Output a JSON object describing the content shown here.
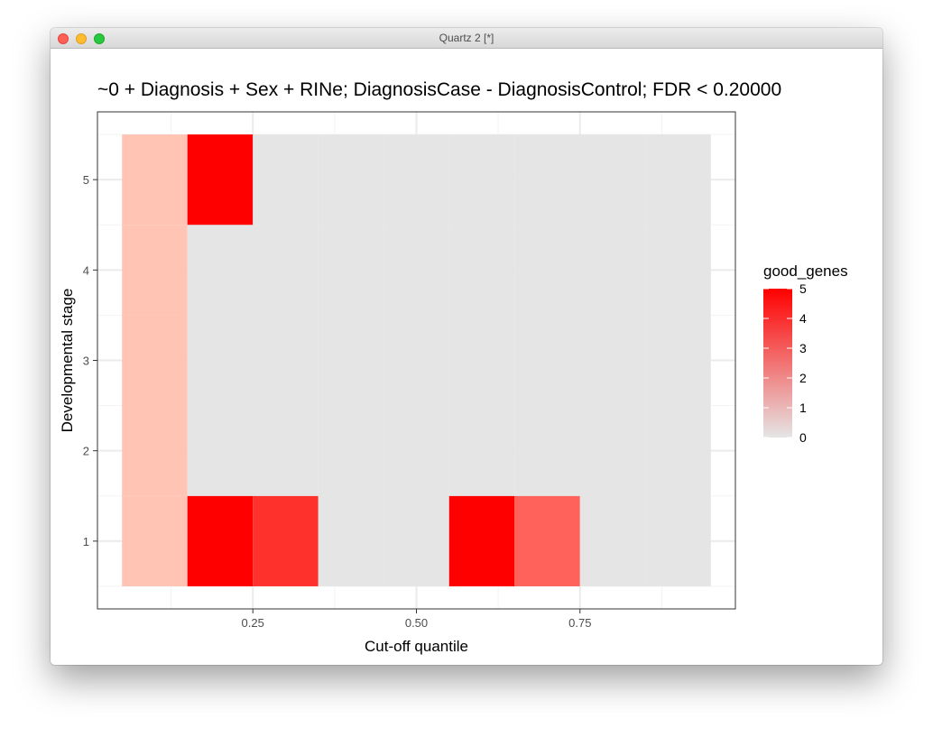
{
  "window": {
    "title": "Quartz 2 [*]"
  },
  "chart_data": {
    "type": "heatmap",
    "title": "~0 + Diagnosis + Sex + RINe; DiagnosisCase - DiagnosisControl; FDR < 0.20000",
    "xlabel": "Cut-off quantile",
    "ylabel": "Developmental stage",
    "x_ticks": [
      "0.25",
      "0.50",
      "0.75"
    ],
    "y_ticks": [
      "1",
      "2",
      "3",
      "4",
      "5"
    ],
    "x_tick_values": [
      0.25,
      0.5,
      0.75
    ],
    "y_tick_values": [
      1,
      2,
      3,
      4,
      5
    ],
    "xlim": [
      0.0125,
      0.9875
    ],
    "ylim": [
      0.25,
      5.75
    ],
    "x": [
      0.1,
      0.2,
      0.3,
      0.4,
      0.5,
      0.6,
      0.7,
      0.8,
      0.9
    ],
    "y": [
      1,
      2,
      3,
      4,
      5
    ],
    "values": [
      [
        1,
        5,
        4,
        0,
        0,
        5,
        3,
        0,
        0
      ],
      [
        1,
        0,
        0,
        0,
        0,
        0,
        0,
        0,
        0
      ],
      [
        1,
        0,
        0,
        0,
        0,
        0,
        0,
        0,
        0
      ],
      [
        1,
        0,
        0,
        0,
        0,
        0,
        0,
        0,
        0
      ],
      [
        1,
        5,
        0,
        0,
        0,
        0,
        0,
        0,
        0
      ]
    ],
    "grid": true,
    "legend": {
      "title": "good_genes",
      "position": "right",
      "ticks": [
        "0",
        "1",
        "2",
        "3",
        "4",
        "5"
      ],
      "tick_values": [
        0,
        1,
        2,
        3,
        4,
        5
      ],
      "low_color": "#e5e5e5",
      "high_color": "#ff0000"
    },
    "colors": {
      "panel_background": "#ffffff",
      "grid_major": "#ebebeb",
      "grid_minor": "#f3f3f3",
      "panel_border": "#333333",
      "tick_text": "#4d4d4d"
    }
  }
}
